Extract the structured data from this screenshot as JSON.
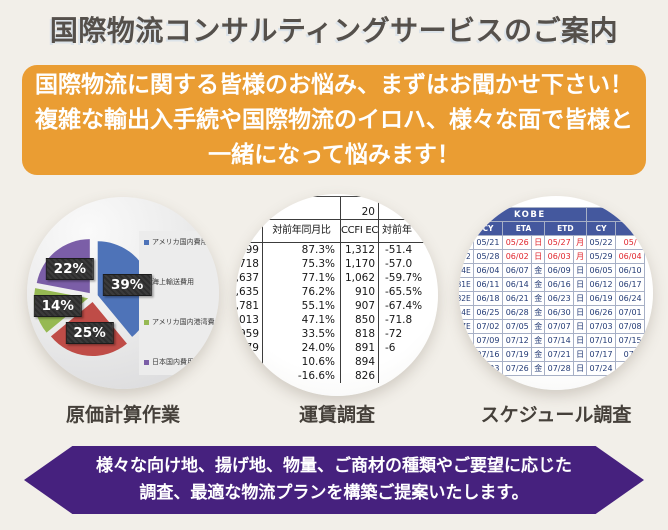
{
  "page": {
    "background": "#f2efe9",
    "title": "国際物流コンサルティングサービスのご案内"
  },
  "intro_banner": {
    "background": "#ea9d33",
    "lines": [
      "国際物流に関する皆様のお悩み、まずはお聞かせ下さい！",
      "複雑な輸出入手続や国際物流のイロハ、様々な面で皆様と",
      "一緒になって悩みます！"
    ]
  },
  "chart_data": {
    "type": "pie",
    "title": "",
    "labels": [
      "アメリカ国内費用",
      "海上輸送費用",
      "アメリカ国内港湾費用",
      "日本国内費用"
    ],
    "values": [
      39,
      25,
      14,
      22
    ],
    "data_labels": [
      "39%",
      "25%",
      "14%",
      "22%"
    ],
    "colors": [
      "#4e73b8",
      "#bf4c47",
      "#96b953",
      "#7b5ea7"
    ],
    "legend_position": "right",
    "exploded": true
  },
  "features": {
    "cost_caption": "原価計算作業",
    "freight_caption": "運賃調査",
    "schedule_caption": "スケジュール調査"
  },
  "freight_table": {
    "top_partial": "20",
    "headers": [
      "",
      "対前年同月比",
      "CCFI EC",
      "対前年"
    ],
    "rows": [
      [
        ",699",
        "87.3%",
        "1,312",
        "-51.4"
      ],
      [
        ",718",
        "75.3%",
        "1,170",
        "-57.0"
      ],
      [
        "2,637",
        "77.1%",
        "1,062",
        "-59.7%"
      ],
      [
        "2,635",
        "76.2%",
        "910",
        "-65.5%"
      ],
      [
        "2,781",
        "55.1%",
        "907",
        "-67.4%"
      ],
      [
        ",013",
        "47.1%",
        "850",
        "-71.8"
      ],
      [
        "959",
        "33.5%",
        "818",
        "-72"
      ],
      [
        "79",
        "24.0%",
        "891",
        "-6"
      ],
      [
        "",
        "10.6%",
        "894",
        ""
      ],
      [
        "",
        "-16.6%",
        "826",
        ""
      ]
    ]
  },
  "schedule_table": {
    "port_header": "KOBE",
    "col_headers": [
      "CY",
      "ETA",
      "ETD",
      "CY"
    ],
    "header_bg": "#44589e",
    "date_color": "#223a75",
    "alert_color": "#e0262d",
    "rows": [
      {
        "code": "",
        "cy": "05/21",
        "eta": "05/26",
        "eta_day": "日",
        "etd": "05/27",
        "etd_day": "月",
        "cy2": "05/22",
        "ext": "05/",
        "alert": true
      },
      {
        "code": "2",
        "cy": "05/28",
        "eta": "06/02",
        "eta_day": "日",
        "etd": "06/03",
        "etd_day": "月",
        "cy2": "05/29",
        "ext": "06/04",
        "alert": true
      },
      {
        "code": "4E",
        "cy": "06/04",
        "eta": "06/07",
        "eta_day": "金",
        "etd": "06/09",
        "etd_day": "日",
        "cy2": "06/05",
        "ext": "06/10",
        "alert": false
      },
      {
        "code": "81E",
        "cy": "06/11",
        "eta": "06/14",
        "eta_day": "金",
        "etd": "06/16",
        "etd_day": "日",
        "cy2": "06/12",
        "ext": "06/17",
        "alert": false
      },
      {
        "code": "82E",
        "cy": "06/18",
        "eta": "06/21",
        "eta_day": "金",
        "etd": "06/23",
        "etd_day": "日",
        "cy2": "06/19",
        "ext": "06/24",
        "alert": false
      },
      {
        "code": "94E",
        "cy": "06/25",
        "eta": "06/28",
        "eta_day": "金",
        "etd": "06/30",
        "etd_day": "日",
        "cy2": "06/26",
        "ext": "07/01",
        "alert": false
      },
      {
        "code": "7E",
        "cy": "07/02",
        "eta": "07/05",
        "eta_day": "金",
        "etd": "07/07",
        "etd_day": "日",
        "cy2": "07/03",
        "ext": "07/08",
        "alert": false
      },
      {
        "code": "",
        "cy": "07/09",
        "eta": "07/12",
        "eta_day": "金",
        "etd": "07/14",
        "etd_day": "日",
        "cy2": "07/10",
        "ext": "07/15",
        "alert": false
      },
      {
        "code": "",
        "cy": "07/16",
        "eta": "07/19",
        "eta_day": "金",
        "etd": "07/21",
        "etd_day": "日",
        "cy2": "07/17",
        "ext": "07/",
        "alert": false
      },
      {
        "code": "",
        "cy": "07/23",
        "eta": "07/26",
        "eta_day": "金",
        "etd": "07/28",
        "etd_day": "日",
        "cy2": "07/24",
        "ext": "",
        "alert": false
      }
    ]
  },
  "bottom_banner": {
    "background": "#46217e",
    "lines": [
      "様々な向け地、揚げ地、物量、ご商材の種類やご要望に応じた",
      "調査、最適な物流プランを構築ご提案いたします。"
    ]
  }
}
